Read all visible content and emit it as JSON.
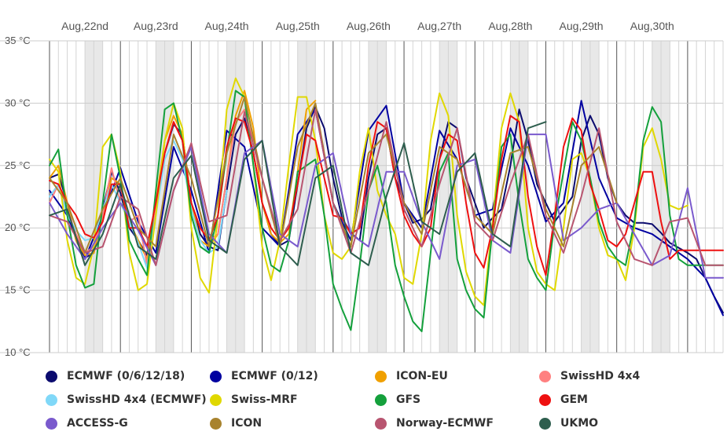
{
  "chart_data": {
    "type": "line",
    "title": "",
    "xlabel": "",
    "ylabel": "",
    "y_unit": "°C",
    "ylim": [
      10,
      35
    ],
    "yticks": [
      "10 °C",
      "15 °C",
      "20 °C",
      "25 °C",
      "30 °C",
      "35 °C"
    ],
    "yticks_values": [
      10,
      15,
      20,
      25,
      30,
      35
    ],
    "x_unit": "hours",
    "xlim": [
      0,
      228
    ],
    "day_labels": [
      "Aug,22nd",
      "Aug,23rd",
      "Aug,24th",
      "Aug,25th",
      "Aug,26th",
      "Aug,27th",
      "Aug,28th",
      "Aug,29th",
      "Aug,30th"
    ],
    "day_label_hours": [
      12,
      36,
      60,
      84,
      108,
      132,
      156,
      180,
      204
    ],
    "night_bands": [
      [
        12,
        18
      ],
      [
        36,
        42
      ],
      [
        60,
        66
      ],
      [
        84,
        90
      ],
      [
        108,
        114
      ],
      [
        132,
        138
      ],
      [
        156,
        162
      ],
      [
        180,
        186
      ],
      [
        204,
        210
      ],
      [
        228,
        230
      ]
    ],
    "grid": true,
    "legend_position": "bottom",
    "series": [
      {
        "name": "ECMWF (0/6/12/18)",
        "color": "#0b0b6e",
        "x": [
          0,
          3,
          6,
          9,
          12,
          15,
          18,
          21,
          24,
          27,
          30,
          33,
          36,
          39,
          42,
          45,
          48,
          51,
          54,
          57,
          60,
          63,
          66,
          69,
          72,
          75,
          78,
          81,
          84,
          87,
          90,
          93,
          96,
          99,
          102,
          105,
          108,
          111,
          114,
          117,
          120,
          123,
          126,
          129,
          132,
          135,
          138,
          141,
          144,
          147,
          150,
          153,
          156,
          159,
          162,
          165,
          168,
          171,
          174,
          177,
          180,
          183,
          186,
          189,
          192,
          195,
          198,
          201,
          204,
          207,
          210,
          213,
          216,
          219,
          222,
          225,
          228
        ],
        "values": [
          24.0,
          24.3,
          22.0,
          19.0,
          17.6,
          18.0,
          21.5,
          24.5,
          22.8,
          20.0,
          19.0,
          17.8,
          21.5,
          26.0,
          28.3,
          27.5,
          22.0,
          19.5,
          18.5,
          18.2,
          23.0,
          27.5,
          28.8,
          26.0,
          22.0,
          19.5,
          18.6,
          19.0,
          23.5,
          28.0,
          29.7,
          28.0,
          24.0,
          20.8,
          19.6,
          19.0,
          24.0,
          27.5,
          28.0,
          24.0,
          22.0,
          20.4,
          20.7,
          21.5,
          25.5,
          28.5,
          28.0,
          24.0,
          22.0,
          20.0,
          20.8,
          21.5,
          25.0,
          29.5,
          27.0,
          23.5,
          22.0,
          20.5,
          21.5,
          22.5,
          27.0,
          29.0,
          27.5,
          24.0,
          22.0,
          21.0,
          20.4,
          20.4,
          20.3,
          19.6,
          18.8,
          18.4,
          18.0,
          17.5,
          16.0,
          14.5,
          13.2
        ]
      },
      {
        "name": "ECMWF (0/12)",
        "color": "#0000a0",
        "x": [
          0,
          6,
          12,
          18,
          24,
          30,
          36,
          42,
          48,
          54,
          60,
          66,
          72,
          78,
          84,
          90,
          96,
          102,
          108,
          114,
          120,
          126,
          132,
          138,
          144,
          150,
          156,
          162,
          168,
          174,
          180,
          186,
          192,
          198,
          204,
          210,
          216,
          222,
          228
        ],
        "values": [
          23.0,
          21.0,
          17.5,
          21.0,
          24.8,
          20.5,
          18.0,
          26.5,
          23.0,
          18.0,
          27.8,
          26.5,
          20.0,
          18.5,
          27.5,
          29.5,
          22.0,
          19.0,
          27.8,
          29.8,
          22.0,
          20.0,
          27.8,
          25.5,
          21.0,
          21.5,
          28.0,
          25.0,
          20.5,
          22.0,
          30.2,
          24.0,
          20.8,
          20.0,
          19.5,
          18.5,
          17.5,
          16.0,
          13.0
        ]
      },
      {
        "name": "ICON-EU",
        "color": "#f0a000",
        "x": [
          0,
          3,
          6,
          9,
          12,
          15,
          18,
          21,
          24,
          27,
          30,
          33,
          36,
          39,
          42,
          45,
          48,
          51,
          54,
          57,
          60,
          63,
          66,
          69,
          72,
          75,
          78,
          81,
          84,
          87,
          90
        ],
        "values": [
          24.0,
          25.0,
          22.0,
          19.0,
          17.8,
          18.0,
          21.0,
          24.0,
          23.5,
          20.5,
          19.0,
          17.5,
          22.0,
          27.0,
          29.0,
          27.5,
          22.0,
          19.0,
          18.5,
          19.5,
          24.0,
          29.0,
          31.0,
          28.0,
          22.0,
          19.5,
          18.8,
          19.5,
          24.5,
          29.5,
          30.2
        ]
      },
      {
        "name": "SwissHD 4x4",
        "color": "#ff8080",
        "x": [
          0,
          3,
          6,
          9,
          12,
          15,
          18,
          21,
          24,
          27,
          30,
          33,
          36,
          39,
          42,
          45,
          48,
          51,
          54,
          57,
          60,
          63,
          66,
          69
        ],
        "values": [
          22.0,
          23.5,
          21.5,
          19.5,
          18.0,
          18.5,
          21.0,
          24.8,
          22.0,
          20.5,
          21.0,
          17.0,
          21.5,
          26.0,
          28.5,
          27.0,
          22.0,
          20.0,
          19.0,
          19.5,
          24.0,
          28.5,
          29.5,
          27.0
        ]
      },
      {
        "name": "SwissHD 4x4 (ECMWF)",
        "color": "#80d8f8",
        "x": [
          0,
          3,
          6,
          9,
          12,
          15,
          18,
          21,
          24,
          27,
          30,
          33,
          36,
          39,
          42,
          45,
          48,
          51,
          54,
          57,
          60
        ],
        "values": [
          22.5,
          23.5,
          21.0,
          19.8,
          19.0,
          19.2,
          21.5,
          23.5,
          22.0,
          20.5,
          18.8,
          16.8,
          21.0,
          25.5,
          27.0,
          25.5,
          21.5,
          19.0,
          18.0,
          18.5,
          23.0
        ]
      },
      {
        "name": "Swiss-MRF",
        "color": "#e0d800",
        "x": [
          0,
          3,
          6,
          9,
          12,
          15,
          18,
          21,
          24,
          27,
          30,
          33,
          36,
          39,
          42,
          45,
          48,
          51,
          54,
          57,
          60,
          63,
          66,
          69,
          72,
          75,
          78,
          81,
          84,
          87,
          90,
          93,
          96,
          99,
          102,
          105,
          108,
          111,
          114,
          117,
          120,
          123,
          126,
          129,
          132,
          135,
          138,
          141,
          144,
          147,
          150,
          153,
          156,
          159,
          162,
          165,
          168,
          171,
          174,
          177,
          180,
          183,
          186,
          189,
          192,
          195,
          198,
          201,
          204,
          207,
          210,
          213,
          216
        ],
        "values": [
          25.5,
          24.5,
          19.0,
          16.0,
          15.5,
          18.5,
          26.5,
          27.5,
          24.5,
          18.0,
          15.0,
          15.5,
          21.0,
          27.0,
          30.0,
          28.0,
          20.0,
          16.0,
          14.8,
          21.0,
          29.5,
          32.0,
          30.5,
          25.0,
          18.5,
          15.8,
          19.0,
          25.0,
          30.5,
          30.5,
          27.0,
          21.0,
          18.0,
          17.5,
          18.5,
          24.5,
          28.0,
          23.0,
          21.0,
          19.5,
          16.0,
          15.5,
          19.5,
          27.0,
          30.8,
          29.0,
          21.0,
          16.5,
          14.5,
          13.8,
          20.5,
          28.0,
          30.8,
          28.5,
          20.0,
          16.5,
          15.5,
          15.0,
          20.0,
          25.5,
          26.0,
          24.0,
          20.0,
          17.8,
          17.5,
          15.8,
          20.0,
          26.5,
          28.0,
          25.5,
          21.8,
          21.5,
          21.8
        ]
      },
      {
        "name": "GFS",
        "color": "#14a03c",
        "x": [
          0,
          3,
          6,
          9,
          12,
          15,
          18,
          21,
          24,
          27,
          30,
          33,
          36,
          39,
          42,
          45,
          48,
          51,
          54,
          57,
          60,
          63,
          66,
          69,
          72,
          75,
          78,
          81,
          84,
          87,
          90,
          93,
          96,
          99,
          102,
          105,
          108,
          111,
          114,
          117,
          120,
          123,
          126,
          129,
          132,
          135,
          138,
          141,
          144,
          147,
          150,
          153,
          156,
          159,
          162,
          165,
          168,
          171,
          174,
          177,
          180,
          183,
          186,
          189,
          192,
          195,
          198,
          201,
          204,
          207,
          210,
          213,
          216,
          219,
          222,
          225,
          228
        ],
        "values": [
          25.0,
          26.3,
          21.0,
          17.0,
          15.2,
          15.5,
          22.0,
          27.5,
          24.0,
          19.0,
          17.5,
          16.2,
          23.0,
          29.5,
          30.0,
          27.0,
          21.0,
          18.5,
          18.0,
          21.0,
          26.0,
          31.0,
          30.5,
          25.0,
          20.0,
          17.0,
          16.5,
          19.0,
          24.5,
          25.0,
          25.5,
          21.0,
          15.5,
          13.5,
          11.8,
          17.0,
          23.0,
          25.0,
          22.0,
          17.0,
          14.5,
          12.5,
          11.7,
          18.0,
          24.5,
          26.0,
          17.5,
          15.0,
          13.5,
          12.8,
          20.0,
          26.5,
          27.5,
          22.0,
          17.5,
          16.0,
          15.0,
          20.5,
          24.5,
          28.5,
          27.0,
          24.0,
          20.5,
          18.5,
          17.5,
          17.0,
          20.5,
          27.0,
          29.7,
          28.5,
          21.0,
          17.5,
          17.0,
          17.0,
          17.0,
          17.0,
          17.0
        ]
      },
      {
        "name": "GEM",
        "color": "#ee1010",
        "x": [
          0,
          3,
          6,
          9,
          12,
          15,
          18,
          21,
          24,
          27,
          30,
          33,
          36,
          39,
          42,
          45,
          48,
          51,
          54,
          57,
          60,
          63,
          66,
          69,
          72,
          75,
          78,
          81,
          84,
          87,
          90,
          93,
          96,
          99,
          102,
          105,
          108,
          111,
          114,
          117,
          120,
          123,
          126,
          129,
          132,
          135,
          138,
          141,
          144,
          147,
          150,
          153,
          156,
          159,
          162,
          165,
          168,
          171,
          174,
          177,
          180,
          183,
          186,
          189,
          192,
          195,
          198,
          201,
          204,
          207,
          210,
          213,
          216,
          219,
          222,
          225,
          228
        ],
        "values": [
          23.8,
          23.5,
          22.0,
          21.0,
          19.5,
          19.2,
          20.5,
          23.5,
          23.5,
          20.0,
          20.0,
          18.5,
          22.0,
          26.0,
          28.5,
          27.0,
          22.0,
          20.0,
          19.0,
          21.0,
          26.5,
          28.8,
          28.5,
          26.0,
          22.0,
          20.0,
          19.0,
          20.0,
          23.5,
          27.5,
          27.0,
          24.0,
          21.0,
          20.8,
          19.5,
          20.0,
          25.0,
          28.5,
          28.0,
          24.0,
          21.0,
          19.5,
          18.5,
          20.0,
          25.5,
          27.5,
          27.0,
          22.0,
          18.0,
          16.8,
          20.0,
          25.5,
          29.0,
          28.5,
          22.5,
          18.5,
          16.2,
          21.0,
          26.5,
          28.8,
          27.8,
          23.5,
          21.5,
          19.0,
          18.5,
          19.5,
          22.0,
          24.5,
          24.5,
          20.5,
          17.5,
          18.2,
          18.2,
          18.2,
          18.2,
          18.2,
          18.2
        ]
      },
      {
        "name": "ACCESS-G",
        "color": "#7a5acd",
        "x": [
          0,
          6,
          12,
          18,
          24,
          30,
          36,
          42,
          48,
          54,
          60,
          66,
          72,
          78,
          84,
          90,
          96,
          102,
          108,
          114,
          120,
          126,
          132,
          138,
          144,
          150,
          156,
          162,
          168,
          174,
          180,
          186,
          192,
          198,
          204,
          210,
          216,
          222,
          228
        ],
        "values": [
          22.0,
          19.5,
          17.5,
          20.0,
          22.0,
          19.8,
          17.0,
          23.0,
          26.5,
          19.5,
          18.0,
          26.0,
          27.0,
          19.5,
          18.5,
          25.0,
          26.0,
          19.5,
          18.5,
          24.5,
          24.5,
          20.5,
          17.5,
          25.0,
          25.5,
          19.0,
          18.0,
          27.5,
          27.5,
          19.0,
          20.0,
          21.5,
          22.0,
          19.5,
          17.0,
          17.8,
          23.2,
          16.0,
          16.0
        ]
      },
      {
        "name": "ICON",
        "color": "#a8832e",
        "x": [
          0,
          6,
          12,
          18,
          24,
          30,
          36,
          42,
          48,
          54,
          60,
          66,
          72,
          78,
          84,
          90,
          96,
          102,
          108,
          114,
          120,
          126,
          132,
          138,
          144,
          150,
          156,
          162,
          168,
          174,
          180,
          186,
          192
        ],
        "values": [
          24.0,
          22.0,
          18.0,
          21.5,
          24.0,
          20.0,
          18.5,
          27.5,
          24.0,
          18.5,
          26.0,
          30.5,
          24.0,
          18.5,
          26.5,
          30.0,
          22.0,
          18.5,
          26.0,
          27.5,
          22.0,
          19.5,
          26.5,
          25.5,
          21.0,
          19.5,
          26.0,
          26.5,
          21.5,
          18.5,
          25.0,
          26.5,
          22.0
        ]
      },
      {
        "name": "Norway-ECMWF",
        "color": "#b85570",
        "x": [
          0,
          6,
          12,
          18,
          24,
          30,
          36,
          42,
          48,
          54,
          60,
          66,
          72,
          78,
          84,
          90,
          96,
          102,
          108,
          114,
          120,
          126,
          132,
          138,
          144,
          150,
          156,
          162,
          168,
          174,
          180,
          186,
          192,
          198,
          204,
          210,
          216,
          222,
          228
        ],
        "values": [
          21.0,
          20.5,
          18.0,
          18.5,
          22.5,
          21.5,
          17.0,
          23.0,
          26.8,
          20.5,
          21.0,
          29.3,
          24.0,
          19.0,
          21.5,
          29.5,
          22.0,
          18.0,
          23.0,
          28.5,
          21.5,
          18.5,
          23.5,
          28.0,
          20.5,
          19.0,
          23.5,
          27.5,
          21.0,
          18.0,
          22.5,
          28.0,
          20.5,
          17.5,
          17.0,
          20.5,
          20.8,
          17.0,
          17.0
        ]
      },
      {
        "name": "UKMO",
        "color": "#2e5e4e",
        "x": [
          0,
          6,
          12,
          18,
          24,
          30,
          36,
          42,
          48,
          54,
          60,
          66,
          72,
          78,
          84,
          90,
          96,
          102,
          108,
          114,
          120,
          126,
          132,
          138,
          144,
          150,
          156,
          162,
          168
        ],
        "values": [
          21.0,
          21.5,
          17.0,
          19.5,
          23.5,
          18.5,
          17.5,
          24.0,
          25.8,
          19.0,
          18.0,
          25.5,
          27.0,
          18.5,
          17.0,
          24.0,
          25.0,
          18.0,
          17.0,
          22.5,
          26.8,
          20.5,
          19.5,
          24.5,
          26.0,
          19.5,
          18.5,
          28.0,
          28.5
        ]
      }
    ]
  }
}
